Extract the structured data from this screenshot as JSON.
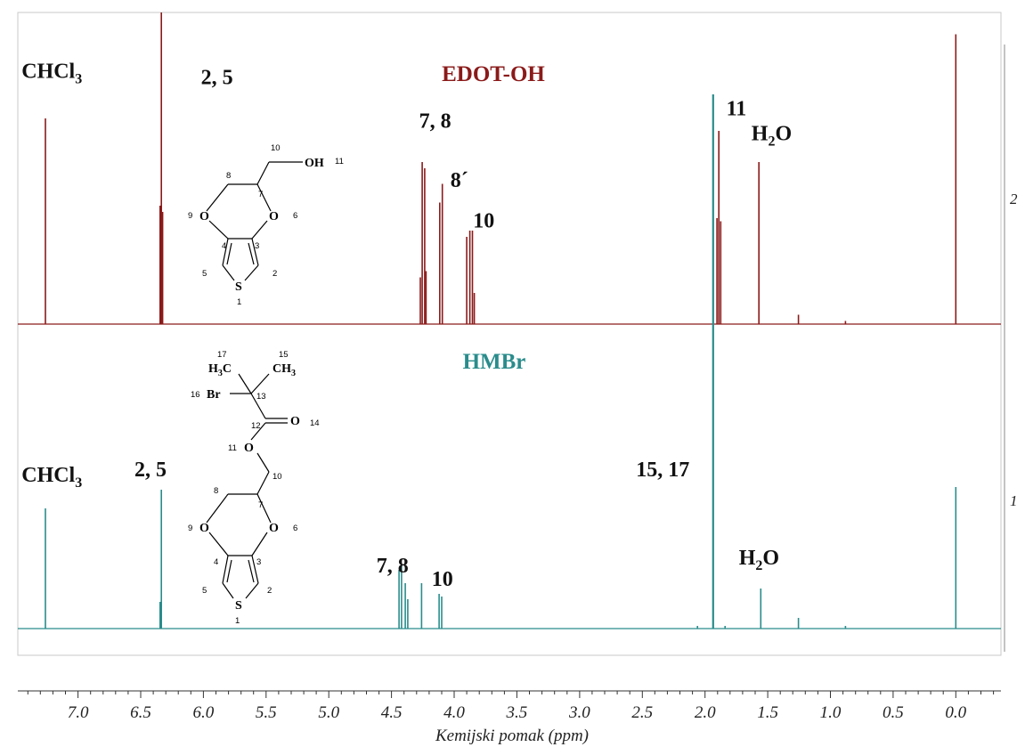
{
  "chart_data": {
    "type": "line",
    "xlabel": "Kemijski pomak (ppm)",
    "x_ticks": [
      "7.0",
      "6.5",
      "6.0",
      "5.5",
      "5.0",
      "4.5",
      "4.0",
      "3.5",
      "3.0",
      "2.5",
      "2.0",
      "1.5",
      "1.0",
      "0.5",
      "0.0"
    ],
    "x_tick_values": [
      7.0,
      6.5,
      6.0,
      5.5,
      5.0,
      4.5,
      4.0,
      3.5,
      3.0,
      2.5,
      2.0,
      1.5,
      1.0,
      0.5,
      0.0
    ],
    "xlim": [
      7.48,
      -0.36
    ],
    "x_reversed": true,
    "right_axis_ticks": [
      "2",
      "1"
    ],
    "series": [
      {
        "name": "EDOT-OH",
        "color": "#8b1a1a",
        "right_axis_label": "2",
        "peaks": [
          {
            "ppm": 7.26,
            "height": 0.66
          },
          {
            "ppm": 6.345,
            "height": 0.38
          },
          {
            "ppm": 6.335,
            "height": 1.0
          },
          {
            "ppm": 6.325,
            "height": 0.36
          },
          {
            "ppm": 4.27,
            "height": 0.15
          },
          {
            "ppm": 4.255,
            "height": 0.52
          },
          {
            "ppm": 4.235,
            "height": 0.5
          },
          {
            "ppm": 4.225,
            "height": 0.17
          },
          {
            "ppm": 4.115,
            "height": 0.39
          },
          {
            "ppm": 4.095,
            "height": 0.45
          },
          {
            "ppm": 3.9,
            "height": 0.28
          },
          {
            "ppm": 3.875,
            "height": 0.3
          },
          {
            "ppm": 3.855,
            "height": 0.3
          },
          {
            "ppm": 3.84,
            "height": 0.1
          },
          {
            "ppm": 1.905,
            "height": 0.34
          },
          {
            "ppm": 1.89,
            "height": 0.62
          },
          {
            "ppm": 1.875,
            "height": 0.33
          },
          {
            "ppm": 1.57,
            "height": 0.52
          },
          {
            "ppm": 1.255,
            "height": 0.03
          },
          {
            "ppm": 0.88,
            "height": 0.01
          },
          {
            "ppm": 0.0,
            "height": 0.93
          }
        ],
        "labels": [
          {
            "text": "CHCl",
            "sub": "3",
            "ppm": 7.45,
            "level": 0.79
          },
          {
            "text": "2, 5",
            "sub": "",
            "ppm": 6.02,
            "level": 0.77
          },
          {
            "text": "7, 8",
            "sub": "",
            "ppm": 4.28,
            "level": 0.63
          },
          {
            "text": "8´",
            "sub": "",
            "ppm": 4.03,
            "level": 0.44
          },
          {
            "text": "10",
            "sub": "",
            "ppm": 3.85,
            "level": 0.31
          },
          {
            "text": "11",
            "sub": "",
            "ppm": 1.83,
            "level": 0.67
          },
          {
            "text": "H",
            "sub": "2",
            "tail": "O",
            "ppm": 1.63,
            "level": 0.59
          }
        ],
        "title": "EDOT-OH"
      },
      {
        "name": "HMBr",
        "color": "#2a8c8c",
        "right_axis_label": "1",
        "peaks": [
          {
            "ppm": 7.26,
            "height": 0.45
          },
          {
            "ppm": 6.345,
            "height": 0.1
          },
          {
            "ppm": 6.335,
            "height": 0.52
          },
          {
            "ppm": 4.44,
            "height": 0.22
          },
          {
            "ppm": 4.42,
            "height": 0.24
          },
          {
            "ppm": 4.39,
            "height": 0.17
          },
          {
            "ppm": 4.37,
            "height": 0.11
          },
          {
            "ppm": 4.26,
            "height": 0.17
          },
          {
            "ppm": 4.12,
            "height": 0.13
          },
          {
            "ppm": 4.1,
            "height": 0.12
          },
          {
            "ppm": 2.06,
            "height": 0.01
          },
          {
            "ppm": 1.935,
            "height": 2.0
          },
          {
            "ppm": 1.84,
            "height": 0.01
          },
          {
            "ppm": 1.555,
            "height": 0.15
          },
          {
            "ppm": 1.255,
            "height": 0.04
          },
          {
            "ppm": 0.88,
            "height": 0.01
          },
          {
            "ppm": 0.0,
            "height": 0.53
          }
        ],
        "labels": [
          {
            "text": "CHCl",
            "sub": "3",
            "ppm": 7.45,
            "level": 0.55
          },
          {
            "text": "2, 5",
            "sub": "",
            "ppm": 6.55,
            "level": 0.57
          },
          {
            "text": "7, 8",
            "sub": "",
            "ppm": 4.62,
            "level": 0.21
          },
          {
            "text": "10",
            "sub": "",
            "ppm": 4.18,
            "level": 0.16
          },
          {
            "text": "15, 17",
            "sub": "",
            "ppm": 2.55,
            "level": 0.57
          },
          {
            "text": "H",
            "sub": "2",
            "tail": "O",
            "ppm": 1.73,
            "level": 0.24
          }
        ],
        "title": "HMBr"
      }
    ]
  },
  "structures": {
    "edot_oh": {
      "atoms": {
        "O_hydroxyl": "OH",
        "O_ring_left": "O",
        "O_ring_right": "O",
        "S": "S"
      },
      "numbers": [
        "10",
        "11",
        "8",
        "7",
        "9",
        "6",
        "4",
        "3",
        "5",
        "2",
        "1"
      ]
    },
    "hmbr": {
      "atoms": {
        "H3C": "H",
        "H3C_sub": "3",
        "H3C_tail": "C",
        "CH3": "CH",
        "CH3_sub": "3",
        "Br": "Br",
        "O_carbonyl": "O",
        "O_ester": "O",
        "O_ring_left": "O",
        "O_ring_right": "O",
        "S": "S"
      },
      "numbers": [
        "17",
        "15",
        "16",
        "13",
        "12",
        "14",
        "11",
        "10",
        "8",
        "7",
        "9",
        "6",
        "4",
        "3",
        "5",
        "2",
        "1"
      ]
    }
  }
}
